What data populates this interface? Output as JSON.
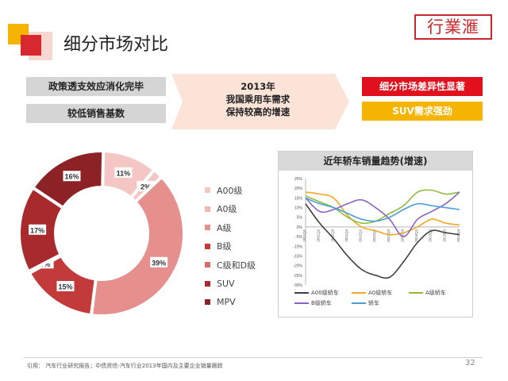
{
  "header": {
    "title": "细分市场对比",
    "logo_text": "行業滙"
  },
  "flow": {
    "left_items": [
      "政策透支效应消化完毕",
      "较低销售基数"
    ],
    "middle_lines": [
      "2013年",
      "我国乘用车需求",
      "保持较高的增速"
    ],
    "right_items": [
      {
        "label": "细分市场差异性显著",
        "color": "#e1101d"
      },
      {
        "label": "SUV需求强劲",
        "color": "#f5b400"
      }
    ]
  },
  "chart_data": [
    {
      "type": "pie",
      "title": "",
      "categories": [
        "A00级",
        "A0级",
        "A级",
        "B级",
        "C级和D级",
        "SUV",
        "MPV"
      ],
      "values": [
        11,
        2,
        39,
        15,
        0,
        17,
        16
      ],
      "labels": [
        "11%",
        "2%",
        "39%",
        "15%",
        "0%",
        "17%",
        "16%"
      ],
      "colors": [
        "#f5c7c4",
        "#f5c7c4",
        "#e5908c",
        "#c23a3a",
        "#d86c66",
        "#a82a2c",
        "#8c2225"
      ],
      "legend": [
        {
          "label": "A00级",
          "color": "#f5c7c4"
        },
        {
          "label": "A0级",
          "color": "#f2b7b3"
        },
        {
          "label": "A级",
          "color": "#e5908c"
        },
        {
          "label": "B级",
          "color": "#c23a3a"
        },
        {
          "label": "C级和D级",
          "color": "#d86c66"
        },
        {
          "label": "SUV",
          "color": "#a82a2c"
        },
        {
          "label": "MPV",
          "color": "#8c2225"
        }
      ]
    },
    {
      "type": "line",
      "title": "近年轿车销量趋势(增速)",
      "x": [
        "2011Q1",
        "2011Q2",
        "2011Q3",
        "2011Q4",
        "2012Q1",
        "2012Q2",
        "2012Q3",
        "2012Q4",
        "2013Q1",
        "2013Q2",
        "2013Q3",
        "2013Q4"
      ],
      "ylim": [
        -30,
        25
      ],
      "yticks": [
        "25%",
        "20%",
        "15%",
        "10%",
        "5%",
        "0%",
        "-5%",
        "-10%",
        "-15%",
        "-20%",
        "-25%",
        "-30%"
      ],
      "series": [
        {
          "name": "A00级轿车",
          "color": "#404040",
          "values": [
            12,
            2,
            -6,
            -15,
            -22,
            -25,
            -26,
            -18,
            -8,
            -2,
            -3,
            -4
          ]
        },
        {
          "name": "A0级轿车",
          "color": "#f5a623",
          "values": [
            18,
            17,
            15,
            6,
            0,
            -2,
            -4,
            -3,
            0,
            4,
            2,
            1
          ]
        },
        {
          "name": "A级轿车",
          "color": "#8fbc3a",
          "values": [
            16,
            13,
            10,
            5,
            2,
            3,
            7,
            11,
            18,
            19,
            17,
            18
          ]
        },
        {
          "name": "B级轿车",
          "color": "#8a63c6",
          "values": [
            15,
            8,
            9,
            12,
            14,
            10,
            4,
            -5,
            4,
            8,
            12,
            18
          ]
        },
        {
          "name": "轿车",
          "color": "#4a9fd8",
          "values": [
            15,
            12,
            10,
            7,
            4,
            3,
            5,
            9,
            12,
            11,
            10,
            9
          ]
        }
      ]
    }
  ],
  "footer": {
    "note": "引用：     汽车行业研究报告；中债资信-汽车行业2013年国内及主要企业销量跟踪",
    "page_number": "32"
  }
}
